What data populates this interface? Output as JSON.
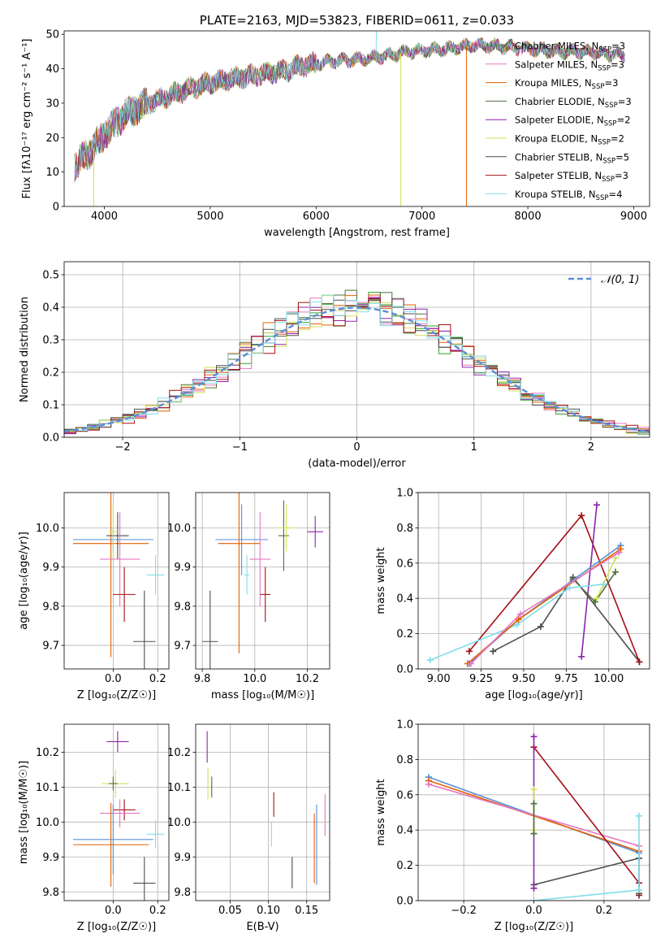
{
  "colors": {
    "chabrier_miles": "#2ca02c",
    "salpeter_miles": "#e377c2",
    "kroupa_miles": "#e66101",
    "chabrier_elodie": "#4f6f3f",
    "salpeter_elodie": "#8e24aa",
    "kroupa_elodie": "#d4e157",
    "chabrier_stelib": "#4d4d4d",
    "salpeter_stelib": "#a50f15",
    "kroupa_stelib": "#80deea",
    "normal_curve": "#5b8fd6"
  },
  "chart_data": [
    {
      "id": "spectrum",
      "type": "line",
      "title": "PLATE=2163, MJD=53823, FIBERID=0611, z=0.033",
      "xlabel": "wavelength [Angstrom, rest frame]",
      "ylabel": "Flux [fλ10⁻¹⁷ erg cm⁻² s⁻¹ A⁻¹]",
      "xlim": [
        3620,
        9150
      ],
      "ylim": [
        0,
        51
      ],
      "xticks": [
        4000,
        5000,
        6000,
        7000,
        8000,
        9000
      ],
      "yticks": [
        0,
        10,
        20,
        30,
        40,
        50
      ],
      "legend_position": "right",
      "legend": [
        {
          "label": "Chabrier MILES, N_SSP=3",
          "text": "Chabrier MILES, N",
          "sub": "SSP",
          "tail": "=3",
          "color_key": "chabrier_miles"
        },
        {
          "label": "Salpeter MILES, N_SSP=3",
          "text": "Salpeter MILES, N",
          "sub": "SSP",
          "tail": "=3",
          "color_key": "salpeter_miles"
        },
        {
          "label": "Kroupa MILES, N_SSP=3",
          "text": "Kroupa MILES, N",
          "sub": "SSP",
          "tail": "=3",
          "color_key": "kroupa_miles"
        },
        {
          "label": "Chabrier ELODIE, N_SSP=3",
          "text": "Chabrier ELODIE, N",
          "sub": "SSP",
          "tail": "=3",
          "color_key": "chabrier_elodie"
        },
        {
          "label": "Salpeter ELODIE, N_SSP=2",
          "text": "Salpeter ELODIE, N",
          "sub": "SSP",
          "tail": "=2",
          "color_key": "salpeter_elodie"
        },
        {
          "label": "Kroupa ELODIE, N_SSP=2",
          "text": "Kroupa ELODIE, N",
          "sub": "SSP",
          "tail": "=2",
          "color_key": "kroupa_elodie"
        },
        {
          "label": "Chabrier STELIB, N_SSP=5",
          "text": "Chabrier STELIB, N",
          "sub": "SSP",
          "tail": "=5",
          "color_key": "chabrier_stelib"
        },
        {
          "label": "Salpeter STELIB, N_SSP=3",
          "text": "Salpeter STELIB, N",
          "sub": "SSP",
          "tail": "=3",
          "color_key": "salpeter_stelib"
        },
        {
          "label": "Kroupa STELIB, N_SSP=4",
          "text": "Kroupa STELIB, N",
          "sub": "SSP",
          "tail": "=4",
          "color_key": "kroupa_stelib"
        }
      ],
      "continuum": [
        [
          3720,
          12
        ],
        [
          3800,
          14
        ],
        [
          3900,
          17
        ],
        [
          4000,
          21
        ],
        [
          4100,
          24
        ],
        [
          4200,
          27
        ],
        [
          4350,
          29
        ],
        [
          4500,
          31
        ],
        [
          4700,
          33
        ],
        [
          4900,
          35
        ],
        [
          5100,
          36.5
        ],
        [
          5300,
          37.5
        ],
        [
          5500,
          38.5
        ],
        [
          5700,
          39.5
        ],
        [
          5900,
          41
        ],
        [
          6100,
          42
        ],
        [
          6300,
          42.5
        ],
        [
          6500,
          43
        ],
        [
          6700,
          44
        ],
        [
          6900,
          45
        ],
        [
          7100,
          45.5
        ],
        [
          7300,
          46
        ],
        [
          7500,
          47
        ],
        [
          7700,
          46.5
        ],
        [
          7900,
          46
        ],
        [
          8100,
          45.5
        ],
        [
          8300,
          45
        ],
        [
          8500,
          45
        ],
        [
          8700,
          44.5
        ],
        [
          8900,
          44
        ]
      ],
      "dropouts": [
        {
          "x": 3900,
          "y_low": 0,
          "color_key": "kroupa_elodie"
        },
        {
          "x": 6800,
          "y_low": 0,
          "color_key": "kroupa_elodie"
        },
        {
          "x": 7420,
          "y_low": 0,
          "color_key": "kroupa_miles"
        }
      ]
    },
    {
      "id": "residuals",
      "type": "histogram",
      "xlabel": "(data-model)/error",
      "ylabel": "Normed distribution",
      "xlim": [
        -2.5,
        2.5
      ],
      "ylim": [
        0,
        0.54
      ],
      "xticks": [
        -2,
        -1,
        0,
        1,
        2
      ],
      "xtick_labels": [
        "−2",
        "−1",
        "0",
        "1",
        "2"
      ],
      "yticks": [
        0.0,
        0.1,
        0.2,
        0.3,
        0.4,
        0.5
      ],
      "bin_width": 0.1,
      "curve_label": "𝒩(0, 1)",
      "curve_color_key": "normal_curve",
      "legend_position": "top-right"
    },
    {
      "id": "age_vs_Z",
      "type": "errorbar",
      "xlabel": "Z [log₁₀(Z/Z☉)]",
      "ylabel": "age  [log₁₀(age/yr)]",
      "xlim": [
        -0.22,
        0.25
      ],
      "ylim": [
        9.64,
        10.09
      ],
      "xticks": [
        0.0,
        0.2
      ],
      "xtick_labels": [
        "0.0",
        "0.2"
      ],
      "yticks": [
        9.7,
        9.8,
        9.9,
        10.0
      ],
      "yticklabels": [
        "9.7",
        "9.8",
        "9.9",
        "10.0"
      ],
      "points": [
        {
          "x": 0.0,
          "y": 9.97,
          "xerr": 0.18,
          "yerr": 0.03,
          "color_key": "normal_curve"
        },
        {
          "x": -0.01,
          "y": 9.96,
          "xerr": 0.17,
          "yerr": 0.29,
          "color_key": "kroupa_miles"
        },
        {
          "x": 0.02,
          "y": 9.98,
          "xerr": 0.05,
          "yerr": 0.06,
          "color_key": "chabrier_stelib"
        },
        {
          "x": 0.0,
          "y": 9.99,
          "xerr": 0.02,
          "yerr": 0.07,
          "color_key": "kroupa_elodie"
        },
        {
          "x": 0.03,
          "y": 9.92,
          "xerr": 0.09,
          "yerr": 0.12,
          "color_key": "salpeter_miles"
        },
        {
          "x": 0.05,
          "y": 9.83,
          "xerr": 0.05,
          "yerr": 0.07,
          "color_key": "salpeter_stelib"
        },
        {
          "x": 0.19,
          "y": 9.88,
          "xerr": 0.04,
          "yerr": 0.05,
          "color_key": "kroupa_stelib"
        },
        {
          "x": 0.14,
          "y": 9.71,
          "xerr": 0.05,
          "yerr": 0.13,
          "color_key": "chabrier_stelib"
        }
      ]
    },
    {
      "id": "age_vs_mass",
      "type": "errorbar",
      "xlabel": "mass [log₁₀(M/M☉)]",
      "xlim": [
        9.775,
        10.285
      ],
      "ylim": [
        9.64,
        10.09
      ],
      "xticks": [
        9.8,
        10.0,
        10.2
      ],
      "xtick_labels": [
        "9.8",
        "10.0",
        "10.2"
      ],
      "yticks": [
        9.7,
        9.8,
        9.9,
        10.0
      ],
      "yticklabels": [
        "9.7",
        "9.8",
        "9.9",
        "10.0"
      ],
      "points": [
        {
          "x": 9.95,
          "y": 9.97,
          "xerr": 0.1,
          "yerr": 0.09,
          "color_key": "normal_curve"
        },
        {
          "x": 9.94,
          "y": 9.96,
          "xerr": 0.08,
          "yerr": 0.28,
          "color_key": "kroupa_miles"
        },
        {
          "x": 10.02,
          "y": 9.92,
          "xerr": 0.04,
          "yerr": 0.12,
          "color_key": "salpeter_miles"
        },
        {
          "x": 10.04,
          "y": 9.83,
          "xerr": 0.02,
          "yerr": 0.07,
          "color_key": "salpeter_stelib"
        },
        {
          "x": 9.97,
          "y": 9.88,
          "xerr": 0.01,
          "yerr": 0.05,
          "color_key": "kroupa_stelib"
        },
        {
          "x": 10.11,
          "y": 9.98,
          "xerr": 0.02,
          "yerr": 0.09,
          "color_key": "chabrier_elodie"
        },
        {
          "x": 10.12,
          "y": 10.0,
          "xerr": 0.03,
          "yerr": 0.06,
          "color_key": "kroupa_elodie"
        },
        {
          "x": 10.23,
          "y": 9.99,
          "xerr": 0.03,
          "yerr": 0.04,
          "color_key": "salpeter_elodie"
        },
        {
          "x": 9.83,
          "y": 9.71,
          "xerr": 0.03,
          "yerr": 0.13,
          "color_key": "chabrier_stelib"
        }
      ]
    },
    {
      "id": "massweight_vs_age",
      "type": "line",
      "xlabel": "age  [log₁₀(age/yr)]",
      "ylabel": "mass weight",
      "xlim": [
        8.88,
        10.24
      ],
      "ylim": [
        0,
        1
      ],
      "xticks": [
        9.0,
        9.25,
        9.5,
        9.75,
        10.0
      ],
      "xtick_labels": [
        "9.00",
        "9.25",
        "9.50",
        "9.75",
        "10.00"
      ],
      "yticks": [
        0,
        0.2,
        0.4,
        0.6,
        0.8,
        1.0
      ],
      "yticklabels": [
        "0.0",
        "0.2",
        "0.4",
        "0.6",
        "0.8",
        "1.0"
      ],
      "series": [
        {
          "color_key": "chabrier_stelib",
          "points": [
            [
              9.32,
              0.1
            ],
            [
              9.6,
              0.24
            ],
            [
              9.79,
              0.52
            ],
            [
              10.18,
              0.04
            ]
          ]
        },
        {
          "color_key": "salpeter_stelib",
          "points": [
            [
              9.18,
              0.1
            ],
            [
              9.84,
              0.87
            ],
            [
              10.18,
              0.04
            ]
          ]
        },
        {
          "color_key": "salpeter_elodie",
          "points": [
            [
              9.84,
              0.07
            ],
            [
              9.93,
              0.93
            ]
          ]
        },
        {
          "color_key": "chabrier_elodie",
          "points": [
            [
              9.79,
              0.51
            ],
            [
              9.92,
              0.38
            ],
            [
              10.04,
              0.55
            ]
          ]
        },
        {
          "color_key": "kroupa_elodie",
          "points": [
            [
              9.93,
              0.4
            ],
            [
              10.04,
              0.63
            ]
          ]
        },
        {
          "color_key": "kroupa_stelib",
          "points": [
            [
              8.95,
              0.05
            ],
            [
              9.46,
              0.25
            ],
            [
              9.77,
              0.46
            ],
            [
              9.97,
              0.48
            ]
          ]
        },
        {
          "color_key": "normal_curve",
          "points": [
            [
              9.18,
              0.03
            ],
            [
              9.47,
              0.28
            ],
            [
              10.07,
              0.7
            ]
          ]
        },
        {
          "color_key": "kroupa_miles",
          "points": [
            [
              9.17,
              0.03
            ],
            [
              9.47,
              0.28
            ],
            [
              10.07,
              0.68
            ]
          ]
        },
        {
          "color_key": "salpeter_miles",
          "points": [
            [
              9.19,
              0.03
            ],
            [
              9.48,
              0.31
            ],
            [
              10.06,
              0.66
            ]
          ]
        }
      ]
    },
    {
      "id": "mass_vs_Z",
      "type": "errorbar",
      "xlabel": "Z [log₁₀(Z/Z☉)]",
      "ylabel": "mass [log₁₀(M/M☉)]",
      "xlim": [
        -0.22,
        0.25
      ],
      "ylim": [
        9.775,
        10.28
      ],
      "xticks": [
        0.0,
        0.2
      ],
      "xtick_labels": [
        "0.0",
        "0.2"
      ],
      "yticks": [
        9.8,
        9.9,
        10.0,
        10.1,
        10.2
      ],
      "yticklabels": [
        "9.8",
        "9.9",
        "10.0",
        "10.1",
        "10.2"
      ],
      "points": [
        {
          "x": 0.02,
          "y": 10.23,
          "xerr": 0.05,
          "yerr": 0.03,
          "color_key": "salpeter_elodie"
        },
        {
          "x": 0.01,
          "y": 10.11,
          "xerr": 0.06,
          "yerr": 0.04,
          "color_key": "kroupa_elodie"
        },
        {
          "x": 0.0,
          "y": 10.11,
          "xerr": 0.02,
          "yerr": 0.02,
          "color_key": "chabrier_elodie"
        },
        {
          "x": 0.05,
          "y": 10.035,
          "xerr": 0.05,
          "yerr": 0.03,
          "color_key": "salpeter_stelib"
        },
        {
          "x": 0.03,
          "y": 10.025,
          "xerr": 0.09,
          "yerr": 0.04,
          "color_key": "salpeter_miles"
        },
        {
          "x": 0.19,
          "y": 9.965,
          "xerr": 0.04,
          "yerr": 0.04,
          "color_key": "kroupa_stelib"
        },
        {
          "x": 0.0,
          "y": 9.95,
          "xerr": 0.18,
          "yerr": 0.1,
          "color_key": "normal_curve"
        },
        {
          "x": -0.01,
          "y": 9.935,
          "xerr": 0.17,
          "yerr": 0.12,
          "color_key": "kroupa_miles"
        },
        {
          "x": 0.14,
          "y": 9.825,
          "xerr": 0.05,
          "yerr": 0.075,
          "color_key": "chabrier_stelib"
        }
      ]
    },
    {
      "id": "mass_vs_ebv",
      "type": "errorbar",
      "xlabel": "E(B-V)",
      "xlim": [
        0.005,
        0.18
      ],
      "ylim": [
        9.775,
        10.28
      ],
      "xticks": [
        0.05,
        0.1,
        0.15
      ],
      "xtick_labels": [
        "0.05",
        "0.10",
        "0.15"
      ],
      "yticks": [
        9.8,
        9.9,
        10.0,
        10.1,
        10.2
      ],
      "yticklabels": [
        "9.8",
        "9.9",
        "10.0",
        "10.1",
        "10.2"
      ],
      "points": [
        {
          "x": 0.02,
          "y": 10.215,
          "xerr": 0,
          "yerr": 0.045,
          "color_key": "salpeter_elodie"
        },
        {
          "x": 0.021,
          "y": 10.11,
          "xerr": 0,
          "yerr": 0.045,
          "color_key": "kroupa_elodie"
        },
        {
          "x": 0.026,
          "y": 10.1,
          "xerr": 0,
          "yerr": 0.03,
          "color_key": "chabrier_elodie"
        },
        {
          "x": 0.107,
          "y": 10.05,
          "xerr": 0,
          "yerr": 0.035,
          "color_key": "salpeter_stelib"
        },
        {
          "x": 0.104,
          "y": 9.965,
          "xerr": 0,
          "yerr": 0.035,
          "color_key": "kroupa_stelib"
        },
        {
          "x": 0.131,
          "y": 9.855,
          "xerr": 0,
          "yerr": 0.045,
          "color_key": "chabrier_stelib"
        },
        {
          "x": 0.16,
          "y": 9.925,
          "xerr": 0,
          "yerr": 0.1,
          "color_key": "kroupa_miles"
        },
        {
          "x": 0.163,
          "y": 9.935,
          "xerr": 0,
          "yerr": 0.115,
          "color_key": "normal_curve"
        },
        {
          "x": 0.174,
          "y": 10.02,
          "xerr": 0,
          "yerr": 0.06,
          "color_key": "salpeter_miles"
        }
      ]
    },
    {
      "id": "massweight_vs_Z",
      "type": "line",
      "xlabel": "Z [log₁₀(Z/Z☉)]",
      "ylabel": "mass weight",
      "xlim": [
        -0.33,
        0.33
      ],
      "ylim": [
        0,
        1
      ],
      "xticks": [
        -0.2,
        0.0,
        0.2
      ],
      "xtick_labels": [
        "−0.2",
        "0.0",
        "0.2"
      ],
      "yticks": [
        0,
        0.2,
        0.4,
        0.6,
        0.8,
        1.0
      ],
      "yticklabels": [
        "0.0",
        "0.2",
        "0.4",
        "0.6",
        "0.8",
        "1.0"
      ],
      "series": [
        {
          "color_key": "normal_curve",
          "points": [
            [
              -0.3,
              0.7
            ],
            [
              0.3,
              0.27
            ]
          ]
        },
        {
          "color_key": "kroupa_miles",
          "points": [
            [
              -0.3,
              0.68
            ],
            [
              0.3,
              0.28
            ]
          ]
        },
        {
          "color_key": "salpeter_miles",
          "points": [
            [
              -0.3,
              0.66
            ],
            [
              0.3,
              0.31
            ]
          ]
        },
        {
          "color_key": "salpeter_stelib",
          "points": [
            [
              0.0,
              0.87
            ],
            [
              0.3,
              0.1
            ],
            [
              0.3,
              0.03
            ]
          ]
        },
        {
          "color_key": "chabrier_stelib",
          "points": [
            [
              0.0,
              0.09
            ],
            [
              0.3,
              0.24
            ],
            [
              0.3,
              0.04
            ]
          ]
        },
        {
          "color_key": "kroupa_stelib",
          "points": [
            [
              0.0,
              0.0
            ],
            [
              0.3,
              0.06
            ],
            [
              0.3,
              0.48
            ]
          ]
        },
        {
          "color_key": "salpeter_elodie",
          "points": [
            [
              0.0,
              0.07
            ],
            [
              0.0,
              0.93
            ]
          ]
        },
        {
          "color_key": "kroupa_elodie",
          "points": [
            [
              0.0,
              0.4
            ],
            [
              0.0,
              0.63
            ]
          ]
        },
        {
          "color_key": "chabrier_elodie",
          "points": [
            [
              0.0,
              0.38
            ],
            [
              0.0,
              0.55
            ]
          ]
        }
      ]
    }
  ]
}
